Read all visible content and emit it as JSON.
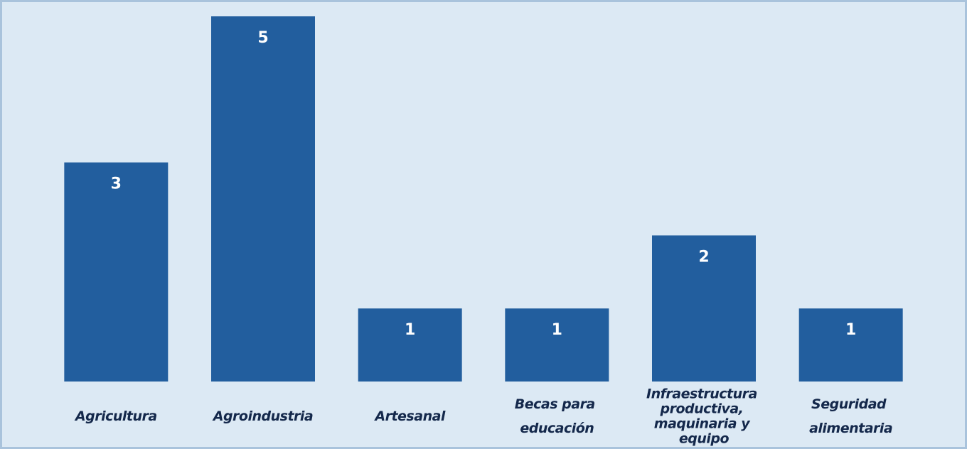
{
  "chart_data": {
    "type": "bar",
    "categories": [
      "Agricultura",
      "Agroindustria",
      "Artesanal",
      "Becas para educación",
      "Infraestructura productiva, maquinaria y equipo",
      "Seguridad alimentaria"
    ],
    "values": [
      3,
      5,
      1,
      1,
      2,
      1
    ],
    "color": "#225e9e"
  }
}
